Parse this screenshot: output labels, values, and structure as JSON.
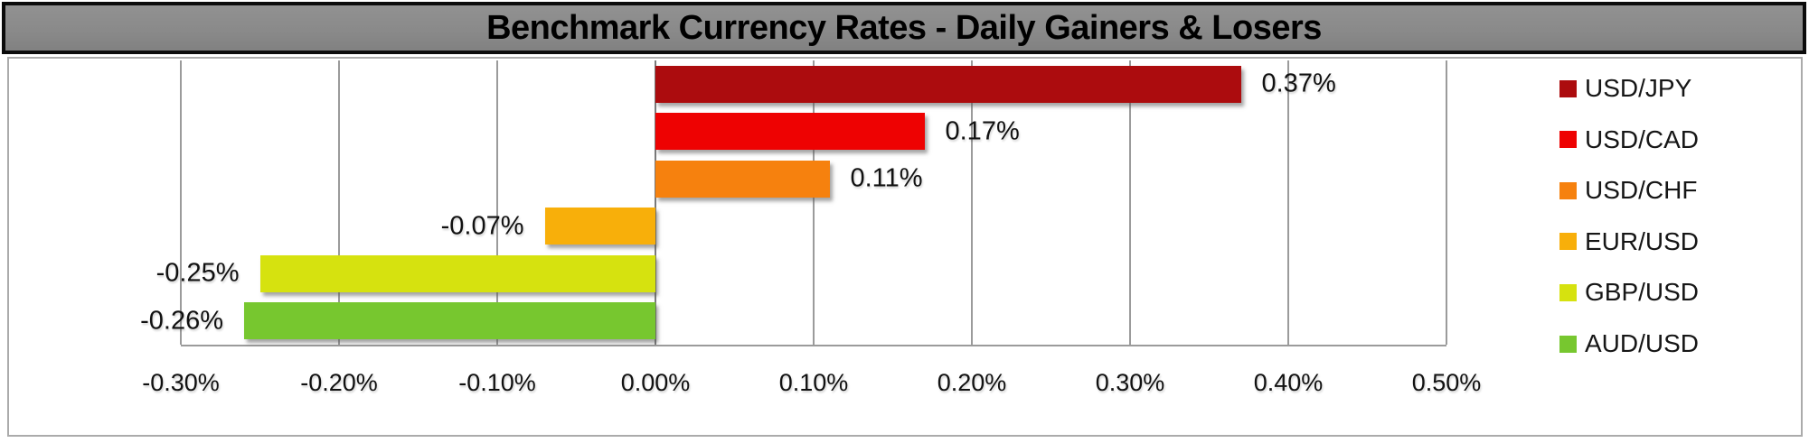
{
  "title_bar": {
    "text": "Benchmark Currency Rates - Daily Gainers & Losers",
    "bg_color": "#8A8A8A",
    "border_color": "#0B0B0B",
    "text_color": "#000000"
  },
  "chart_data": {
    "type": "bar",
    "orientation": "horizontal",
    "title": "Benchmark Currency Rates - Daily Gainers & Losers",
    "categories": [
      "USD/JPY",
      "USD/CAD",
      "USD/CHF",
      "EUR/USD",
      "GBP/USD",
      "AUD/USD"
    ],
    "values": [
      0.37,
      0.17,
      0.11,
      -0.07,
      -0.25,
      -0.26
    ],
    "value_labels": [
      "0.37%",
      "0.17%",
      "0.11%",
      "-0.07%",
      "-0.25%",
      "-0.26%"
    ],
    "bar_colors": [
      "#AC0C0E",
      "#EE0202",
      "#F6810E",
      "#F8AF0A",
      "#D6E20F",
      "#77C72F"
    ],
    "xlim": [
      -0.3,
      0.5
    ],
    "x_ticks": [
      -0.3,
      -0.2,
      -0.1,
      0.0,
      0.1,
      0.2,
      0.3,
      0.4,
      0.5
    ],
    "x_tick_labels": [
      "-0.30%",
      "-0.20%",
      "-0.10%",
      "0.00%",
      "0.10%",
      "0.20%",
      "0.30%",
      "0.40%",
      "0.50%"
    ],
    "grid": true,
    "axis_color": "#9B9B9B",
    "legend_position": "right",
    "legend": [
      {
        "label": "USD/JPY",
        "color": "#AC0C0E"
      },
      {
        "label": "USD/CAD",
        "color": "#EE0202"
      },
      {
        "label": "USD/CHF",
        "color": "#F6810E"
      },
      {
        "label": "EUR/USD",
        "color": "#F8AF0A"
      },
      {
        "label": "GBP/USD",
        "color": "#D6E20F"
      },
      {
        "label": "AUD/USD",
        "color": "#77C72F"
      }
    ]
  }
}
